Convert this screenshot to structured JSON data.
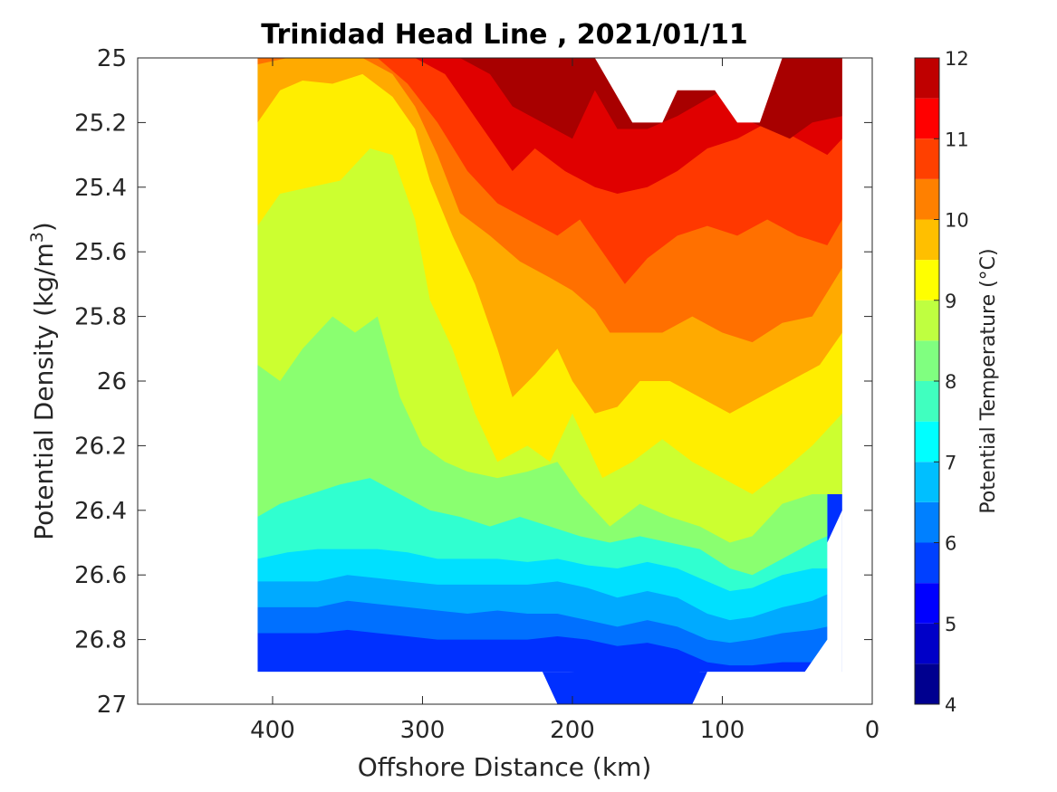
{
  "chart_data": {
    "type": "heatmap",
    "subtype": "filled-contour",
    "title": "Trinidad Head Line , 2021/01/11",
    "xlabel": "Offshore Distance (km)",
    "ylabel": "Potential Density (kg/m",
    "ylabel_superscript": "3",
    "ylabel_suffix": ")",
    "xlim": [
      490,
      0
    ],
    "x_reversed": true,
    "ylim": [
      25,
      27
    ],
    "y_reversed": true,
    "xticks": [
      400,
      300,
      200,
      100,
      0
    ],
    "yticks": [
      25,
      25.2,
      25.4,
      25.6,
      25.8,
      26,
      26.2,
      26.4,
      26.6,
      26.8,
      27
    ],
    "ytick_labels": [
      "25",
      "25.2",
      "25.4",
      "25.6",
      "25.8",
      "26",
      "26.2",
      "26.4",
      "26.6",
      "26.8",
      "27"
    ],
    "grid": false,
    "colorbar": {
      "label": "Potential Temperature (°C)",
      "range": [
        4,
        12
      ],
      "ticks": [
        4,
        5,
        6,
        7,
        8,
        9,
        10,
        11,
        12
      ],
      "levels": [
        4,
        4.5,
        5,
        5.5,
        6,
        6.5,
        7,
        7.5,
        8,
        8.5,
        9,
        9.5,
        10,
        10.5,
        11,
        11.5,
        12
      ],
      "colors": [
        "#00008f",
        "#0000df",
        "#0030ff",
        "#0070ff",
        "#00aaff",
        "#00e0ff",
        "#30ffd0",
        "#8aff70",
        "#ccff30",
        "#ffee00",
        "#ffaa00",
        "#ff7000",
        "#ff3800",
        "#e00000",
        "#a80000"
      ]
    },
    "x_range_data": [
      410,
      20
    ],
    "isotherms": [
      {
        "level": 11.5,
        "points": [
          [
            290,
            25
          ],
          [
            240,
            25
          ],
          [
            215,
            25
          ],
          [
            190,
            25
          ]
        ]
      },
      {
        "level": 11.0,
        "points": [
          [
            300,
            25
          ],
          [
            275,
            25
          ],
          [
            255,
            25.05
          ],
          [
            240,
            25.15
          ],
          [
            220,
            25.2
          ],
          [
            200,
            25.25
          ],
          [
            185,
            25.1
          ],
          [
            170,
            25.22
          ],
          [
            150,
            25.22
          ],
          [
            130,
            25.18
          ],
          [
            100,
            25.1
          ],
          [
            80,
            25.2
          ],
          [
            55,
            25.25
          ],
          [
            40,
            25.2
          ],
          [
            20,
            25.18
          ]
        ]
      },
      {
        "level": 10.5,
        "points": [
          [
            330,
            25
          ],
          [
            305,
            25
          ],
          [
            285,
            25.05
          ],
          [
            270,
            25.15
          ],
          [
            255,
            25.25
          ],
          [
            240,
            25.35
          ],
          [
            225,
            25.28
          ],
          [
            205,
            25.35
          ],
          [
            185,
            25.4
          ],
          [
            170,
            25.42
          ],
          [
            150,
            25.4
          ],
          [
            130,
            25.35
          ],
          [
            110,
            25.28
          ],
          [
            90,
            25.25
          ],
          [
            70,
            25.2
          ],
          [
            50,
            25.25
          ],
          [
            30,
            25.3
          ],
          [
            20,
            25.25
          ]
        ]
      },
      {
        "level": 10.0,
        "points": [
          [
            380,
            25
          ],
          [
            355,
            25
          ],
          [
            330,
            25.0
          ],
          [
            310,
            25.08
          ],
          [
            290,
            25.2
          ],
          [
            270,
            25.35
          ],
          [
            250,
            25.45
          ],
          [
            230,
            25.5
          ],
          [
            210,
            25.55
          ],
          [
            195,
            25.5
          ],
          [
            180,
            25.6
          ],
          [
            165,
            25.7
          ],
          [
            150,
            25.62
          ],
          [
            130,
            25.55
          ],
          [
            110,
            25.52
          ],
          [
            90,
            25.55
          ],
          [
            70,
            25.5
          ],
          [
            50,
            25.55
          ],
          [
            30,
            25.58
          ],
          [
            20,
            25.5
          ]
        ]
      },
      {
        "level": 9.5,
        "points": [
          [
            410,
            25.02
          ],
          [
            390,
            25
          ],
          [
            370,
            25
          ],
          [
            340,
            25.0
          ],
          [
            320,
            25.05
          ],
          [
            305,
            25.15
          ],
          [
            290,
            25.3
          ],
          [
            275,
            25.48
          ],
          [
            255,
            25.55
          ],
          [
            235,
            25.63
          ],
          [
            215,
            25.68
          ],
          [
            200,
            25.72
          ],
          [
            185,
            25.78
          ],
          [
            175,
            25.85
          ],
          [
            160,
            25.85
          ],
          [
            140,
            25.85
          ],
          [
            120,
            25.8
          ],
          [
            100,
            25.85
          ],
          [
            80,
            25.88
          ],
          [
            60,
            25.82
          ],
          [
            40,
            25.8
          ],
          [
            20,
            25.65
          ]
        ]
      },
      {
        "level": 9.0,
        "points": [
          [
            410,
            25.2
          ],
          [
            395,
            25.1
          ],
          [
            380,
            25.07
          ],
          [
            360,
            25.08
          ],
          [
            340,
            25.05
          ],
          [
            320,
            25.12
          ],
          [
            305,
            25.22
          ],
          [
            295,
            25.38
          ],
          [
            280,
            25.55
          ],
          [
            265,
            25.7
          ],
          [
            250,
            25.9
          ],
          [
            240,
            26.05
          ],
          [
            225,
            25.98
          ],
          [
            210,
            25.9
          ],
          [
            200,
            26.0
          ],
          [
            185,
            26.1
          ],
          [
            170,
            26.08
          ],
          [
            155,
            26.0
          ],
          [
            135,
            26.0
          ],
          [
            115,
            26.05
          ],
          [
            95,
            26.1
          ],
          [
            75,
            26.05
          ],
          [
            55,
            26.0
          ],
          [
            35,
            25.95
          ],
          [
            20,
            25.85
          ]
        ]
      },
      {
        "level": 8.5,
        "points": [
          [
            410,
            25.52
          ],
          [
            395,
            25.42
          ],
          [
            375,
            25.4
          ],
          [
            355,
            25.38
          ],
          [
            335,
            25.28
          ],
          [
            320,
            25.3
          ],
          [
            305,
            25.5
          ],
          [
            295,
            25.75
          ],
          [
            280,
            25.9
          ],
          [
            265,
            26.1
          ],
          [
            250,
            26.25
          ],
          [
            230,
            26.2
          ],
          [
            215,
            26.25
          ],
          [
            200,
            26.1
          ],
          [
            180,
            26.3
          ],
          [
            160,
            26.25
          ],
          [
            140,
            26.18
          ],
          [
            120,
            26.25
          ],
          [
            100,
            26.3
          ],
          [
            80,
            26.35
          ],
          [
            60,
            26.28
          ],
          [
            40,
            26.2
          ],
          [
            20,
            26.1
          ]
        ]
      },
      {
        "level": 8.0,
        "points": [
          [
            410,
            25.95
          ],
          [
            395,
            26.0
          ],
          [
            380,
            25.9
          ],
          [
            360,
            25.8
          ],
          [
            345,
            25.85
          ],
          [
            330,
            25.8
          ],
          [
            315,
            26.05
          ],
          [
            300,
            26.2
          ],
          [
            285,
            26.25
          ],
          [
            270,
            26.28
          ],
          [
            250,
            26.3
          ],
          [
            230,
            26.28
          ],
          [
            210,
            26.25
          ],
          [
            195,
            26.35
          ],
          [
            175,
            26.45
          ],
          [
            155,
            26.38
          ],
          [
            135,
            26.42
          ],
          [
            115,
            26.45
          ],
          [
            95,
            26.5
          ],
          [
            80,
            26.48
          ],
          [
            60,
            26.38
          ],
          [
            40,
            26.35
          ],
          [
            20,
            26.35
          ]
        ]
      },
      {
        "level": 7.5,
        "points": [
          [
            410,
            26.42
          ],
          [
            395,
            26.38
          ],
          [
            375,
            26.35
          ],
          [
            355,
            26.32
          ],
          [
            335,
            26.3
          ],
          [
            315,
            26.35
          ],
          [
            295,
            26.4
          ],
          [
            275,
            26.42
          ],
          [
            255,
            26.45
          ],
          [
            235,
            26.42
          ],
          [
            215,
            26.45
          ],
          [
            195,
            26.48
          ],
          [
            175,
            26.5
          ],
          [
            155,
            26.48
          ],
          [
            135,
            26.5
          ],
          [
            115,
            26.52
          ],
          [
            95,
            26.58
          ],
          [
            80,
            26.6
          ],
          [
            60,
            26.55
          ],
          [
            40,
            26.5
          ],
          [
            30,
            26.48
          ]
        ]
      },
      {
        "level": 7.0,
        "points": [
          [
            410,
            26.55
          ],
          [
            390,
            26.53
          ],
          [
            370,
            26.52
          ],
          [
            350,
            26.52
          ],
          [
            330,
            26.52
          ],
          [
            310,
            26.53
          ],
          [
            290,
            26.55
          ],
          [
            270,
            26.55
          ],
          [
            250,
            26.55
          ],
          [
            230,
            26.56
          ],
          [
            210,
            26.55
          ],
          [
            190,
            26.57
          ],
          [
            170,
            26.58
          ],
          [
            150,
            26.56
          ],
          [
            130,
            26.58
          ],
          [
            110,
            26.62
          ],
          [
            95,
            26.65
          ],
          [
            80,
            26.64
          ],
          [
            60,
            26.6
          ],
          [
            40,
            26.58
          ],
          [
            30,
            26.58
          ]
        ]
      },
      {
        "level": 6.5,
        "points": [
          [
            410,
            26.62
          ],
          [
            390,
            26.62
          ],
          [
            370,
            26.62
          ],
          [
            350,
            26.6
          ],
          [
            330,
            26.61
          ],
          [
            310,
            26.62
          ],
          [
            290,
            26.63
          ],
          [
            270,
            26.63
          ],
          [
            250,
            26.63
          ],
          [
            230,
            26.63
          ],
          [
            210,
            26.62
          ],
          [
            190,
            26.64
          ],
          [
            170,
            26.67
          ],
          [
            150,
            26.65
          ],
          [
            130,
            26.67
          ],
          [
            110,
            26.72
          ],
          [
            95,
            26.74
          ],
          [
            80,
            26.73
          ],
          [
            60,
            26.7
          ],
          [
            40,
            26.68
          ],
          [
            30,
            26.66
          ]
        ]
      },
      {
        "level": 6.0,
        "points": [
          [
            410,
            26.7
          ],
          [
            390,
            26.7
          ],
          [
            370,
            26.7
          ],
          [
            350,
            26.68
          ],
          [
            330,
            26.69
          ],
          [
            310,
            26.7
          ],
          [
            290,
            26.71
          ],
          [
            270,
            26.72
          ],
          [
            250,
            26.71
          ],
          [
            230,
            26.72
          ],
          [
            210,
            26.72
          ],
          [
            190,
            26.74
          ],
          [
            170,
            26.76
          ],
          [
            150,
            26.74
          ],
          [
            130,
            26.76
          ],
          [
            110,
            26.8
          ],
          [
            95,
            26.81
          ],
          [
            80,
            26.8
          ],
          [
            60,
            26.78
          ],
          [
            40,
            26.77
          ],
          [
            30,
            26.76
          ]
        ]
      },
      {
        "level": 5.5,
        "points": [
          [
            410,
            26.78
          ],
          [
            390,
            26.78
          ],
          [
            370,
            26.78
          ],
          [
            350,
            26.77
          ],
          [
            330,
            26.78
          ],
          [
            310,
            26.79
          ],
          [
            290,
            26.8
          ],
          [
            270,
            26.8
          ],
          [
            250,
            26.8
          ],
          [
            230,
            26.8
          ],
          [
            210,
            26.79
          ],
          [
            190,
            26.8
          ],
          [
            170,
            26.82
          ],
          [
            150,
            26.81
          ],
          [
            130,
            26.83
          ],
          [
            110,
            26.87
          ],
          [
            95,
            26.88
          ],
          [
            80,
            26.88
          ],
          [
            60,
            26.87
          ],
          [
            40,
            26.87
          ],
          [
            30,
            26.85
          ]
        ]
      },
      {
        "level": 5.0,
        "points": [
          [
            410,
            26.88
          ],
          [
            370,
            26.88
          ],
          [
            340,
            26.87
          ],
          [
            300,
            26.89
          ],
          [
            260,
            26.89
          ],
          [
            230,
            26.89
          ],
          [
            200,
            26.9
          ],
          [
            170,
            26.91
          ],
          [
            145,
            26.94
          ],
          [
            125,
            26.98
          ],
          [
            115,
            27.0
          ]
        ]
      }
    ],
    "data_mask_note": "no data white regions"
  }
}
